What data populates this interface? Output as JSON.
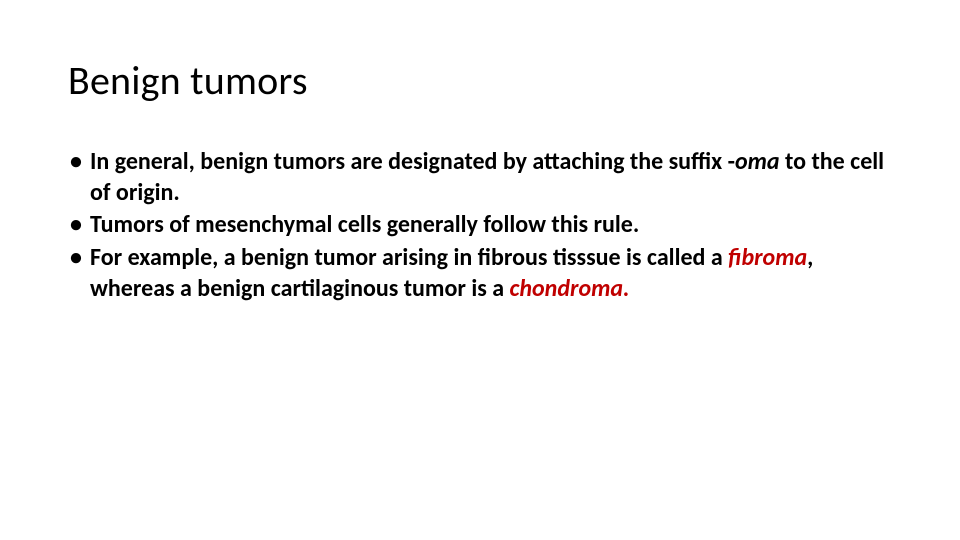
{
  "slide": {
    "title": "Benign tumors",
    "title_fontsize": 40,
    "title_color": "#000000",
    "body_fontsize": 24,
    "body_color": "#000000",
    "accent_color": "#c00000",
    "background_color": "#ffffff",
    "bullets": [
      {
        "runs": [
          {
            "text": "In general, benign tumors are designated by attaching the suffix -",
            "style": "bold"
          },
          {
            "text": "oma",
            "style": "bold-italic"
          },
          {
            "text": " to the cell of origin.",
            "style": "bold"
          }
        ]
      },
      {
        "runs": [
          {
            "text": "Tumors of mesenchymal cells generally follow this rule.",
            "style": "bold"
          }
        ]
      },
      {
        "runs": [
          {
            "text": " For example, a benign tumor arising in fibrous tisssue is called a ",
            "style": "bold"
          },
          {
            "text": "fibroma",
            "style": "bold-italic-red"
          },
          {
            "text": ", whereas a benign cartilaginous tumor is a ",
            "style": "bold"
          },
          {
            "text": "chondroma.",
            "style": "bold-italic-red"
          }
        ]
      }
    ]
  }
}
